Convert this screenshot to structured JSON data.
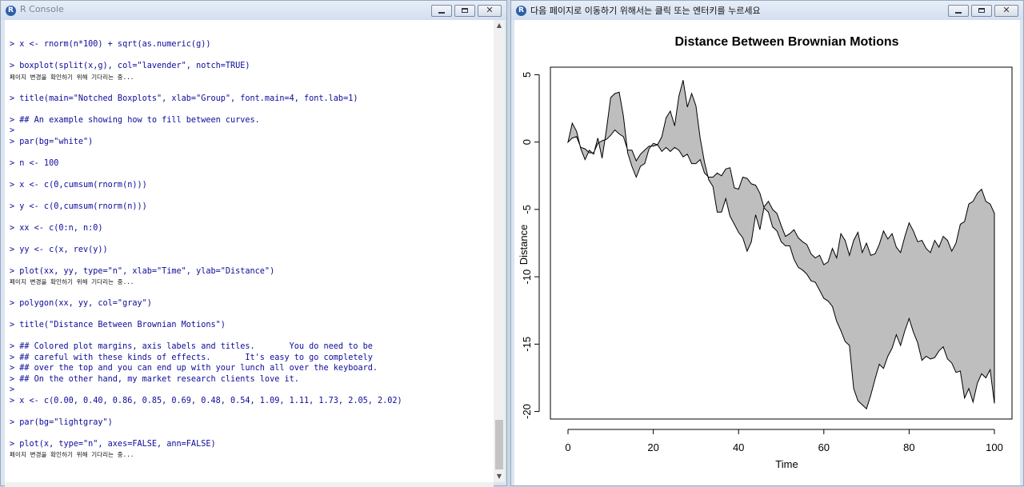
{
  "console": {
    "title": "R Console",
    "lines": [
      {
        "type": "cmd",
        "text": "> x <- rnorm(n*100) + sqrt(as.numeric(g))"
      },
      {
        "type": "blank",
        "text": ""
      },
      {
        "type": "cmd",
        "text": "> boxplot(split(x,g), col=\"lavender\", notch=TRUE)"
      },
      {
        "type": "msg",
        "text": "페이지 변경을 확인하기 위해 기다리는 중..."
      },
      {
        "type": "blank",
        "text": ""
      },
      {
        "type": "cmd",
        "text": "> title(main=\"Notched Boxplots\", xlab=\"Group\", font.main=4, font.lab=1)"
      },
      {
        "type": "blank",
        "text": ""
      },
      {
        "type": "cmd",
        "text": "> ## An example showing how to fill between curves."
      },
      {
        "type": "cmd",
        "text": ">"
      },
      {
        "type": "cmd",
        "text": "> par(bg=\"white\")"
      },
      {
        "type": "blank",
        "text": ""
      },
      {
        "type": "cmd",
        "text": "> n <- 100"
      },
      {
        "type": "blank",
        "text": ""
      },
      {
        "type": "cmd",
        "text": "> x <- c(0,cumsum(rnorm(n)))"
      },
      {
        "type": "blank",
        "text": ""
      },
      {
        "type": "cmd",
        "text": "> y <- c(0,cumsum(rnorm(n)))"
      },
      {
        "type": "blank",
        "text": ""
      },
      {
        "type": "cmd",
        "text": "> xx <- c(0:n, n:0)"
      },
      {
        "type": "blank",
        "text": ""
      },
      {
        "type": "cmd",
        "text": "> yy <- c(x, rev(y))"
      },
      {
        "type": "blank",
        "text": ""
      },
      {
        "type": "cmd",
        "text": "> plot(xx, yy, type=\"n\", xlab=\"Time\", ylab=\"Distance\")"
      },
      {
        "type": "msg",
        "text": "페이지 변경을 확인하기 위해 기다리는 중..."
      },
      {
        "type": "blank",
        "text": ""
      },
      {
        "type": "cmd",
        "text": "> polygon(xx, yy, col=\"gray\")"
      },
      {
        "type": "blank",
        "text": ""
      },
      {
        "type": "cmd",
        "text": "> title(\"Distance Between Brownian Motions\")"
      },
      {
        "type": "blank",
        "text": ""
      },
      {
        "type": "cmd",
        "text": "> ## Colored plot margins, axis labels and titles.       You do need to be"
      },
      {
        "type": "cmd",
        "text": "> ## careful with these kinds of effects.       It's easy to go completely"
      },
      {
        "type": "cmd",
        "text": "> ## over the top and you can end up with your lunch all over the keyboard."
      },
      {
        "type": "cmd",
        "text": "> ## On the other hand, my market research clients love it."
      },
      {
        "type": "cmd",
        "text": ">"
      },
      {
        "type": "cmd",
        "text": "> x <- c(0.00, 0.40, 0.86, 0.85, 0.69, 0.48, 0.54, 1.09, 1.11, 1.73, 2.05, 2.02)"
      },
      {
        "type": "blank",
        "text": ""
      },
      {
        "type": "cmd",
        "text": "> par(bg=\"lightgray\")"
      },
      {
        "type": "blank",
        "text": ""
      },
      {
        "type": "cmd",
        "text": "> plot(x, type=\"n\", axes=FALSE, ann=FALSE)"
      },
      {
        "type": "msg",
        "text": "페이지 변경을 확인하기 위해 기다리는 중..."
      }
    ]
  },
  "graph_window": {
    "title": "다음 페이지로 이동하기 위해서는 클릭 또는 엔터키를 누르세요",
    "icon_letter": "R"
  },
  "controls": {
    "minimize_icon": "minimize-icon",
    "maximize_icon": "maximize-icon",
    "close_icon": "close-icon",
    "close_glyph": "✕"
  },
  "chart_data": {
    "type": "area",
    "title": "Distance Between Brownian Motions",
    "xlabel": "Time",
    "ylabel": "Distance",
    "xlim": [
      0,
      100
    ],
    "ylim": [
      -20.5,
      5.5
    ],
    "xticks": [
      0,
      20,
      40,
      60,
      80,
      100
    ],
    "yticks": [
      5,
      0,
      -5,
      -10,
      -15,
      -20
    ],
    "fill": "#bebebe",
    "series": [
      {
        "values": [
          0.0,
          1.4,
          0.8,
          -0.5,
          -1.3,
          -0.6,
          -0.9,
          0.3,
          -1.2,
          0.9,
          3.3,
          3.6,
          3.7,
          1.9,
          -0.8,
          -1.8,
          -2.6,
          -1.8,
          -1.6,
          -0.5,
          -0.1,
          -0.2,
          0.4,
          1.8,
          2.3,
          1.2,
          3.4,
          4.6,
          2.6,
          3.6,
          2.7,
          0.3,
          -1.5,
          -2.8,
          -3.3,
          -5.2,
          -5.2,
          -4.2,
          -5.5,
          -6.1,
          -6.7,
          -7.1,
          -8.1,
          -7.4,
          -5.4,
          -6.5,
          -4.8,
          -4.4,
          -5.0,
          -5.3,
          -6.2,
          -7.0,
          -6.8,
          -6.5,
          -7.1,
          -7.4,
          -7.6,
          -8.3,
          -8.6,
          -8.4,
          -9.1,
          -8.9,
          -7.9,
          -8.6,
          -6.8,
          -7.3,
          -8.4,
          -7.3,
          -6.7,
          -8.2,
          -7.5,
          -8.4,
          -8.3,
          -7.6,
          -6.6,
          -7.2,
          -6.8,
          -7.8,
          -8.2,
          -7.0,
          -6.0,
          -6.6,
          -7.4,
          -7.3,
          -7.9,
          -8.2,
          -7.3,
          -7.8,
          -7.0,
          -7.3,
          -8.1,
          -7.5,
          -6.1,
          -5.9,
          -4.6,
          -4.4,
          -3.8,
          -3.5,
          -4.4,
          -4.6,
          -5.3
        ]
      },
      {
        "values": [
          0.0,
          0.3,
          0.4,
          -0.4,
          -0.5,
          -0.8,
          -0.8,
          -0.1,
          0.1,
          0.2,
          0.5,
          0.9,
          0.6,
          0.4,
          -0.6,
          -0.6,
          -1.4,
          -0.9,
          -0.6,
          -0.3,
          -0.3,
          -0.2,
          -0.7,
          -0.4,
          -0.7,
          -0.4,
          -0.6,
          -1.1,
          -0.9,
          -1.6,
          -1.6,
          -1.3,
          -2.3,
          -2.6,
          -2.6,
          -2.3,
          -2.5,
          -2.0,
          -1.9,
          -3.4,
          -3.5,
          -2.6,
          -2.7,
          -3.1,
          -3.2,
          -3.8,
          -4.9,
          -5.2,
          -6.3,
          -6.6,
          -7.4,
          -7.7,
          -7.7,
          -8.7,
          -9.3,
          -9.5,
          -9.8,
          -10.3,
          -10.4,
          -11.0,
          -11.6,
          -11.8,
          -12.2,
          -13.3,
          -14.0,
          -14.8,
          -15.1,
          -18.3,
          -19.2,
          -19.5,
          -19.8,
          -18.8,
          -17.6,
          -16.5,
          -16.8,
          -15.9,
          -15.3,
          -14.3,
          -15.1,
          -14.0,
          -13.1,
          -14.1,
          -14.9,
          -16.2,
          -15.9,
          -16.1,
          -16.0,
          -15.5,
          -15.2,
          -16.1,
          -16.4,
          -17.1,
          -17.0,
          -19.0,
          -18.3,
          -19.3,
          -17.9,
          -17.2,
          -17.5,
          -16.9,
          -19.4
        ]
      }
    ]
  }
}
